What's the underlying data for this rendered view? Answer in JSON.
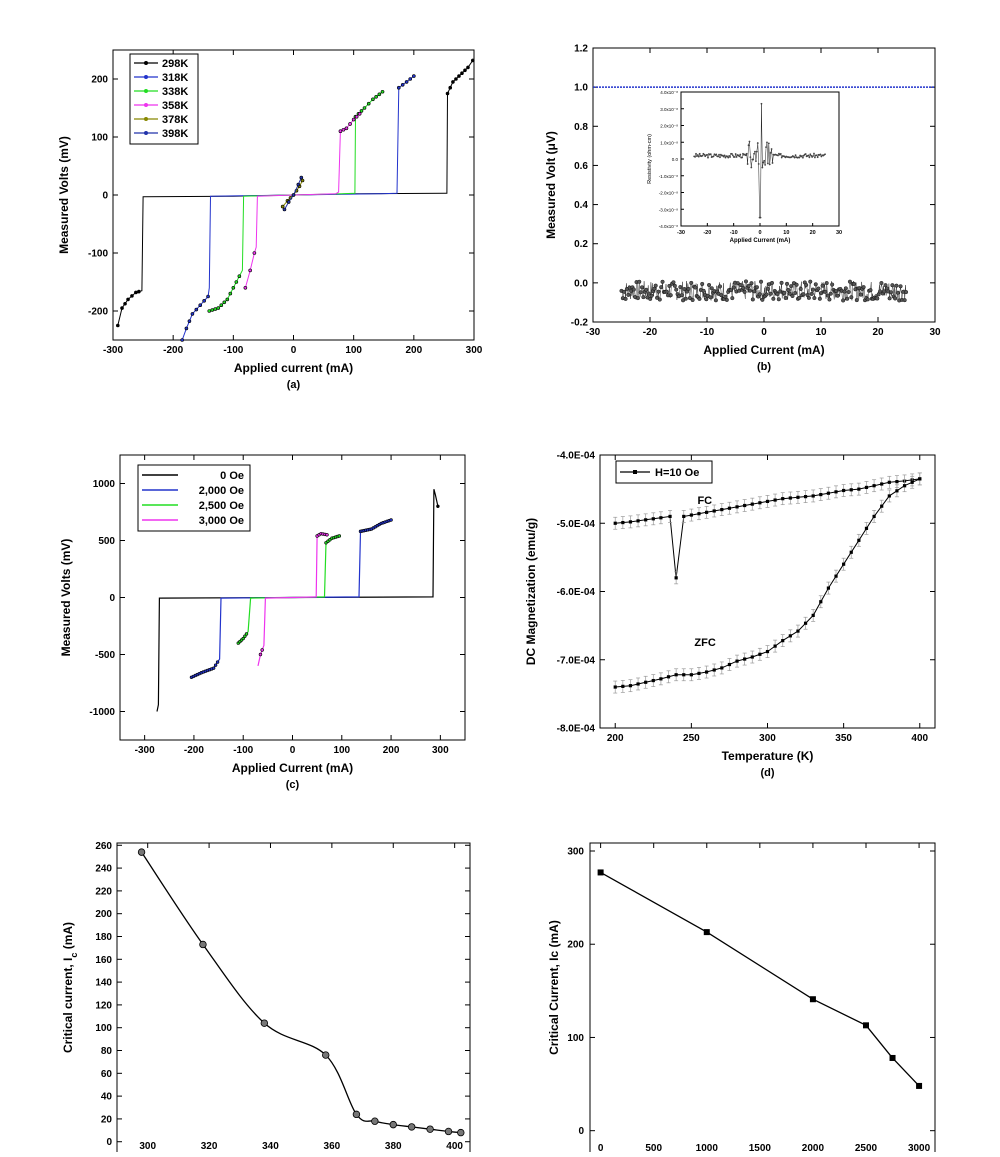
{
  "chart_data": [
    {
      "id": "a",
      "type": "line",
      "sublabel": "(a)",
      "xlabel": "Applied current (mA)",
      "ylabel": "Measured Volts (mV)",
      "xlim": [
        -300,
        300
      ],
      "ylim": [
        -250,
        250
      ],
      "xticks": [
        -300,
        -200,
        -100,
        0,
        100,
        200,
        300
      ],
      "yticks": [
        -200,
        -100,
        0,
        100,
        200
      ],
      "legend_position": "top-left",
      "series": [
        {
          "name": "298K",
          "color": "#000000",
          "points": [
            [
              -292,
              -225
            ],
            [
              -285,
              -195
            ],
            [
              -275,
              -180
            ],
            [
              -262,
              -168
            ],
            [
              -252,
              -165
            ],
            [
              -250,
              -3
            ],
            [
              -100,
              -2
            ],
            [
              0,
              0
            ],
            [
              100,
              2
            ],
            [
              252,
              3
            ],
            [
              255,
              3
            ],
            [
              256,
              175
            ],
            [
              265,
              195
            ],
            [
              280,
              210
            ],
            [
              290,
              220
            ],
            [
              298,
              232
            ]
          ]
        },
        {
          "name": "318K",
          "color": "#2233cc",
          "points": [
            [
              -185,
              -250
            ],
            [
              -178,
              -230
            ],
            [
              -168,
              -205
            ],
            [
              -155,
              -190
            ],
            [
              -142,
              -175
            ],
            [
              -140,
              -160
            ],
            [
              -138,
              -2
            ],
            [
              0,
              0
            ],
            [
              140,
              2
            ],
            [
              172,
              3
            ],
            [
              175,
              185
            ],
            [
              188,
              195
            ],
            [
              200,
              205
            ]
          ]
        },
        {
          "name": "338K",
          "color": "#22dd22",
          "points": [
            [
              -140,
              -200
            ],
            [
              -125,
              -195
            ],
            [
              -110,
              -180
            ],
            [
              -95,
              -150
            ],
            [
              -85,
              -130
            ],
            [
              -83,
              -2
            ],
            [
              0,
              0
            ],
            [
              80,
              2
            ],
            [
              102,
              3
            ],
            [
              103,
              135
            ],
            [
              118,
              150
            ],
            [
              132,
              165
            ],
            [
              148,
              178
            ]
          ]
        },
        {
          "name": "358K",
          "color": "#ee33ee",
          "points": [
            [
              -80,
              -160
            ],
            [
              -72,
              -130
            ],
            [
              -65,
              -100
            ],
            [
              -62,
              -90
            ],
            [
              -60,
              -2
            ],
            [
              0,
              0
            ],
            [
              70,
              2
            ],
            [
              75,
              5
            ],
            [
              78,
              110
            ],
            [
              88,
              115
            ],
            [
              100,
              130
            ],
            [
              110,
              140
            ]
          ]
        },
        {
          "name": "378K",
          "color": "#888800",
          "points": [
            [
              -18,
              -20
            ],
            [
              -10,
              -10
            ],
            [
              0,
              0
            ],
            [
              10,
              15
            ],
            [
              15,
              25
            ]
          ]
        },
        {
          "name": "398K",
          "color": "#2233aa",
          "points": [
            [
              -15,
              -25
            ],
            [
              -8,
              -12
            ],
            [
              0,
              0
            ],
            [
              8,
              18
            ],
            [
              13,
              30
            ]
          ]
        }
      ]
    },
    {
      "id": "b",
      "type": "scatter",
      "sublabel": "(b)",
      "xlabel": "Applied Current (mA)",
      "ylabel": "Measured Volt (μV)",
      "xlim": [
        -30,
        30
      ],
      "ylim": [
        -0.2,
        1.2
      ],
      "xticks": [
        -30,
        -20,
        -10,
        0,
        10,
        20,
        30
      ],
      "yticks": [
        -0.2,
        0.0,
        0.2,
        0.4,
        0.6,
        0.8,
        1.0,
        1.2
      ],
      "reference_line": {
        "y": 1.0,
        "color": "#2233cc"
      },
      "noise": {
        "x_start": -25,
        "x_end": 25,
        "mean": -0.04,
        "amplitude": 0.05
      },
      "inset": {
        "xlabel": "Applied Current (mA)",
        "ylabel": "Resistivity (ohm-cm)",
        "xlim": [
          -30,
          30
        ],
        "ylim": [
          -4e-08,
          4e-08
        ],
        "xticks": [
          -30,
          -20,
          -10,
          0,
          10,
          20,
          30
        ],
        "yticks": [
          "-4.0x10⁻⁸",
          "-3.0x10⁻⁸",
          "-2.0x10⁻⁸",
          "-1.0x10⁻⁸",
          "0.0",
          "1.0x10⁻⁸",
          "2.0x10⁻⁸",
          "3.0x10⁻⁸",
          "4.0x10⁻⁸"
        ]
      }
    },
    {
      "id": "c",
      "type": "line",
      "sublabel": "(c)",
      "xlabel": "Applied Current (mA)",
      "ylabel": "Measured Volts (mV)",
      "xlim": [
        -350,
        350
      ],
      "ylim": [
        -1250,
        1250
      ],
      "xticks": [
        -300,
        -200,
        -100,
        0,
        100,
        200,
        300
      ],
      "yticks": [
        -1000,
        -500,
        0,
        500,
        1000
      ],
      "legend_position": "top-left",
      "series": [
        {
          "name": "0 Oe",
          "color": "#000000",
          "points": [
            [
              -275,
              -1000
            ],
            [
              -272,
              -940
            ],
            [
              -270,
              -5
            ],
            [
              0,
              0
            ],
            [
              285,
              5
            ],
            [
              287,
              950
            ],
            [
              290,
              900
            ],
            [
              295,
              800
            ]
          ]
        },
        {
          "name": "2,000 Oe",
          "color": "#2233cc",
          "points": [
            [
              -205,
              -700
            ],
            [
              -185,
              -660
            ],
            [
              -160,
              -620
            ],
            [
              -148,
              -540
            ],
            [
              -145,
              -5
            ],
            [
              0,
              0
            ],
            [
              135,
              5
            ],
            [
              138,
              580
            ],
            [
              160,
              600
            ],
            [
              180,
              650
            ],
            [
              200,
              680
            ]
          ]
        },
        {
          "name": "2,500 Oe",
          "color": "#22dd22",
          "points": [
            [
              -110,
              -400
            ],
            [
              -100,
              -360
            ],
            [
              -90,
              -300
            ],
            [
              -85,
              -5
            ],
            [
              0,
              0
            ],
            [
              65,
              5
            ],
            [
              68,
              480
            ],
            [
              80,
              520
            ],
            [
              95,
              540
            ]
          ]
        },
        {
          "name": "3,000 Oe",
          "color": "#ee33ee",
          "points": [
            [
              -70,
              -600
            ],
            [
              -65,
              -500
            ],
            [
              -58,
              -420
            ],
            [
              -55,
              -5
            ],
            [
              0,
              0
            ],
            [
              48,
              5
            ],
            [
              50,
              540
            ],
            [
              58,
              560
            ],
            [
              70,
              550
            ]
          ]
        }
      ]
    },
    {
      "id": "d",
      "type": "line",
      "sublabel": "(d)",
      "xlabel": "Temperature (K)",
      "ylabel": "DC Magnetization (emu/g)",
      "xlim": [
        190,
        410
      ],
      "ylim": [
        -0.0008,
        -0.0004
      ],
      "xticks": [
        200,
        250,
        300,
        350,
        400
      ],
      "ytick_values": [
        -0.0008,
        -0.0007,
        -0.0006,
        -0.0005,
        -0.0004
      ],
      "ytick_labels": [
        "-8.0E-04",
        "-7.0E-04",
        "-6.0E-04",
        "-5.0E-04",
        "-4.0E-04"
      ],
      "legend": "H=10 Oe",
      "annotations": {
        "fc": "FC",
        "zfc": "ZFC"
      },
      "series": [
        {
          "name": "FC",
          "points": [
            [
              200,
              -0.0005
            ],
            [
              210,
              -0.000498
            ],
            [
              220,
              -0.000495
            ],
            [
              230,
              -0.000492
            ],
            [
              236,
              -0.00049
            ],
            [
              240,
              -0.00058
            ],
            [
              245,
              -0.00049
            ],
            [
              250,
              -0.000488
            ],
            [
              260,
              -0.000484
            ],
            [
              270,
              -0.00048
            ],
            [
              280,
              -0.000476
            ],
            [
              290,
              -0.000472
            ],
            [
              300,
              -0.000468
            ],
            [
              310,
              -0.000464
            ],
            [
              320,
              -0.000462
            ],
            [
              330,
              -0.00046
            ],
            [
              340,
              -0.000456
            ],
            [
              350,
              -0.000452
            ],
            [
              360,
              -0.00045
            ],
            [
              370,
              -0.000445
            ],
            [
              380,
              -0.00044
            ],
            [
              390,
              -0.000438
            ],
            [
              400,
              -0.000435
            ]
          ]
        },
        {
          "name": "ZFC",
          "points": [
            [
              200,
              -0.00074
            ],
            [
              210,
              -0.000738
            ],
            [
              220,
              -0.000733
            ],
            [
              230,
              -0.000728
            ],
            [
              240,
              -0.000722
            ],
            [
              250,
              -0.000722
            ],
            [
              260,
              -0.000718
            ],
            [
              270,
              -0.000712
            ],
            [
              280,
              -0.000702
            ],
            [
              290,
              -0.000696
            ],
            [
              300,
              -0.000688
            ],
            [
              310,
              -0.000672
            ],
            [
              320,
              -0.000658
            ],
            [
              330,
              -0.000635
            ],
            [
              340,
              -0.000595
            ],
            [
              350,
              -0.00056
            ],
            [
              360,
              -0.000525
            ],
            [
              370,
              -0.00049
            ],
            [
              380,
              -0.00046
            ],
            [
              390,
              -0.000445
            ],
            [
              400,
              -0.000435
            ]
          ]
        }
      ]
    },
    {
      "id": "e",
      "type": "line",
      "sublabel": "",
      "xlabel": "",
      "ylabel": "Critical current, I",
      "ylabel_sub": "c",
      "ylabel_unit": " (mA)",
      "xlim": [
        290,
        405
      ],
      "ylim": [
        -2,
        262
      ],
      "xticks": [
        300,
        320,
        340,
        360,
        380,
        400
      ],
      "yticks": [
        0,
        20,
        40,
        60,
        80,
        100,
        120,
        140,
        160,
        180,
        200,
        220,
        240,
        260
      ],
      "series": [
        {
          "name": "Ic",
          "points": [
            [
              298,
              254
            ],
            [
              318,
              173
            ],
            [
              338,
              104
            ],
            [
              358,
              76
            ],
            [
              368,
              24
            ],
            [
              374,
              18
            ],
            [
              380,
              15
            ],
            [
              386,
              13
            ],
            [
              392,
              11
            ],
            [
              398,
              9
            ],
            [
              402,
              8
            ]
          ]
        }
      ]
    },
    {
      "id": "f",
      "type": "line",
      "sublabel": "",
      "xlabel": "",
      "ylabel": "Critical Current, Ic (mA)",
      "xlim": [
        -100,
        3150
      ],
      "ylim": [
        -10,
        300
      ],
      "xticks": [
        0,
        500,
        1000,
        1500,
        2000,
        2500,
        3000
      ],
      "yticks": [
        0,
        100,
        200,
        300
      ],
      "series": [
        {
          "name": "Ic",
          "points": [
            [
              0,
              277
            ],
            [
              1000,
              213
            ],
            [
              2000,
              141
            ],
            [
              2500,
              113
            ],
            [
              2750,
              78
            ],
            [
              3000,
              48
            ]
          ]
        }
      ]
    }
  ]
}
